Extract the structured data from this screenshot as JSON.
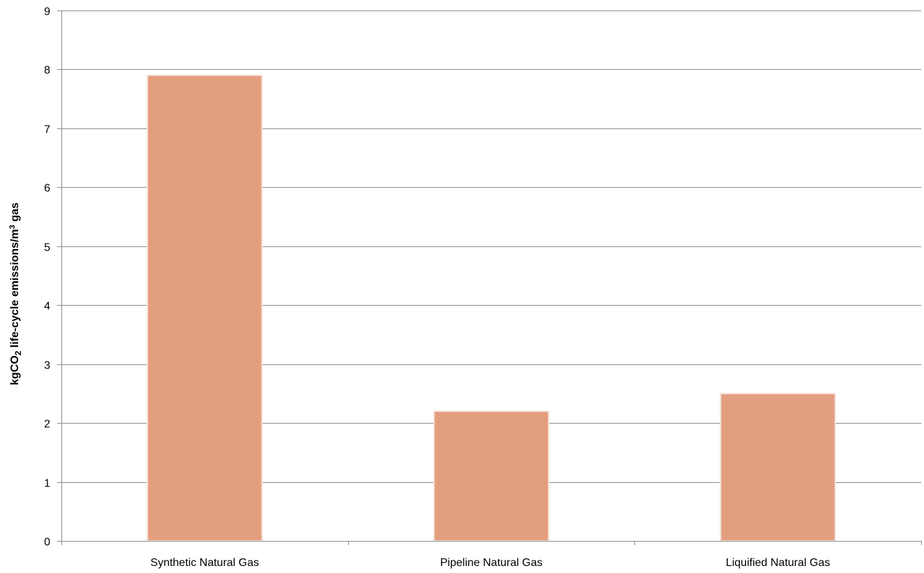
{
  "chart_data": {
    "type": "bar",
    "categories": [
      "Synthetic Natural Gas",
      "Pipeline Natural Gas",
      "Liquified Natural Gas"
    ],
    "values": [
      7.9,
      2.2,
      2.5
    ],
    "title": "",
    "xlabel": "",
    "ylabel": {
      "prefix": "kgCO",
      "subscript": "2",
      "middle": " life-cycle emissions/m",
      "superscript": "3",
      "suffix": " gas"
    },
    "ylim": [
      0,
      9
    ],
    "yticks": [
      "0",
      "1",
      "2",
      "3",
      "4",
      "5",
      "6",
      "7",
      "8",
      "9"
    ],
    "grid": true,
    "legend": "none",
    "colors": {
      "bar": "#E39E80",
      "bar_edge": "#F6E2D8",
      "grid": "#8C8C8C",
      "axis": "#8C8C8C"
    }
  }
}
